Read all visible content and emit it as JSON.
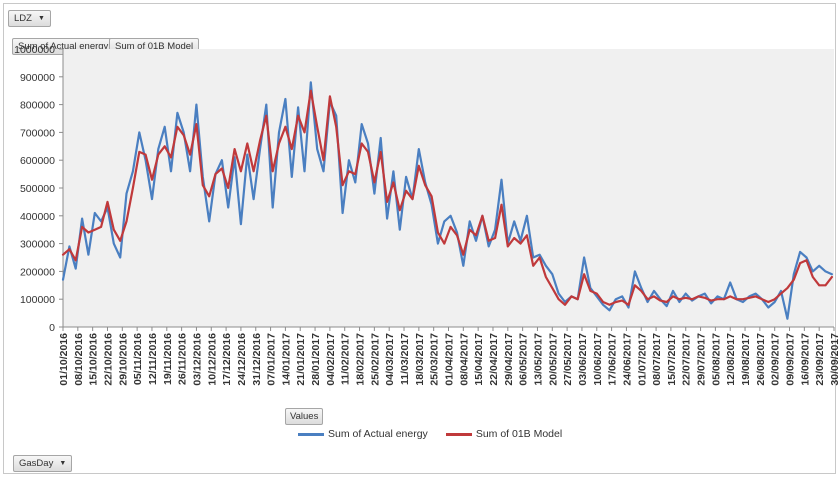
{
  "filter": {
    "ldz_label": "LDZ"
  },
  "value_buttons": [
    "Sum of Actual energy",
    "Sum of 01B Model"
  ],
  "values_button": "Values",
  "axis_button": "GasDay",
  "colors": {
    "actual": "#4a7fc1",
    "model": "#c0393b",
    "plot_bg": "#f0f0f0"
  },
  "chart_data": {
    "type": "line",
    "title": "",
    "xlabel": "",
    "ylabel": "",
    "ylim": [
      0,
      1000000
    ],
    "yticks": [
      "0",
      "100000",
      "200000",
      "300000",
      "400000",
      "500000",
      "600000",
      "700000",
      "800000",
      "900000",
      "1000000"
    ],
    "grid": false,
    "legend_position": "bottom",
    "x_start": "01/10/2016",
    "x_end": "30/09/2017",
    "xtick_labels": [
      "01/10/2016",
      "08/10/2016",
      "15/10/2016",
      "22/10/2016",
      "29/10/2016",
      "05/11/2016",
      "12/11/2016",
      "19/11/2016",
      "26/11/2016",
      "03/12/2016",
      "10/12/2016",
      "17/12/2016",
      "24/12/2016",
      "31/12/2016",
      "07/01/2017",
      "14/01/2017",
      "21/01/2017",
      "28/01/2017",
      "04/02/2017",
      "11/02/2017",
      "18/02/2017",
      "25/02/2017",
      "04/03/2017",
      "11/03/2017",
      "18/03/2017",
      "25/03/2017",
      "01/04/2017",
      "08/04/2017",
      "15/04/2017",
      "22/04/2017",
      "29/04/2017",
      "06/05/2017",
      "13/05/2017",
      "20/05/2017",
      "27/05/2017",
      "03/06/2017",
      "10/06/2017",
      "17/06/2017",
      "24/06/2017",
      "01/07/2017",
      "08/07/2017",
      "15/07/2017",
      "22/07/2017",
      "29/07/2017",
      "05/08/2017",
      "12/08/2017",
      "19/08/2017",
      "26/08/2017",
      "02/09/2017",
      "09/09/2017",
      "16/09/2017",
      "23/09/2017",
      "30/09/2017"
    ],
    "x": [
      "01/10/2016",
      "04/10/2016",
      "07/10/2016",
      "10/10/2016",
      "13/10/2016",
      "16/10/2016",
      "19/10/2016",
      "22/10/2016",
      "25/10/2016",
      "28/10/2016",
      "31/10/2016",
      "03/11/2016",
      "06/11/2016",
      "09/11/2016",
      "12/11/2016",
      "15/11/2016",
      "18/11/2016",
      "21/11/2016",
      "24/11/2016",
      "27/11/2016",
      "30/11/2016",
      "03/12/2016",
      "06/12/2016",
      "09/12/2016",
      "12/12/2016",
      "15/12/2016",
      "18/12/2016",
      "21/12/2016",
      "24/12/2016",
      "27/12/2016",
      "30/12/2016",
      "02/01/2017",
      "05/01/2017",
      "08/01/2017",
      "11/01/2017",
      "14/01/2017",
      "17/01/2017",
      "20/01/2017",
      "23/01/2017",
      "26/01/2017",
      "29/01/2017",
      "01/02/2017",
      "04/02/2017",
      "07/02/2017",
      "10/02/2017",
      "13/02/2017",
      "16/02/2017",
      "19/02/2017",
      "22/02/2017",
      "25/02/2017",
      "28/02/2017",
      "03/03/2017",
      "06/03/2017",
      "09/03/2017",
      "12/03/2017",
      "15/03/2017",
      "18/03/2017",
      "21/03/2017",
      "24/03/2017",
      "27/03/2017",
      "30/03/2017",
      "02/04/2017",
      "05/04/2017",
      "08/04/2017",
      "11/04/2017",
      "14/04/2017",
      "17/04/2017",
      "20/04/2017",
      "23/04/2017",
      "26/04/2017",
      "29/04/2017",
      "02/05/2017",
      "05/05/2017",
      "08/05/2017",
      "11/05/2017",
      "14/05/2017",
      "17/05/2017",
      "20/05/2017",
      "23/05/2017",
      "26/05/2017",
      "29/05/2017",
      "01/06/2017",
      "04/06/2017",
      "07/06/2017",
      "10/06/2017",
      "13/06/2017",
      "16/06/2017",
      "19/06/2017",
      "22/06/2017",
      "25/06/2017",
      "28/06/2017",
      "01/07/2017",
      "04/07/2017",
      "07/07/2017",
      "10/07/2017",
      "13/07/2017",
      "16/07/2017",
      "19/07/2017",
      "22/07/2017",
      "25/07/2017",
      "28/07/2017",
      "31/07/2017",
      "03/08/2017",
      "06/08/2017",
      "09/08/2017",
      "12/08/2017",
      "15/08/2017",
      "18/08/2017",
      "21/08/2017",
      "24/08/2017",
      "27/08/2017",
      "30/08/2017",
      "02/09/2017",
      "05/09/2017",
      "08/09/2017",
      "11/09/2017",
      "14/09/2017",
      "17/09/2017",
      "20/09/2017",
      "23/09/2017",
      "26/09/2017",
      "29/09/2017"
    ],
    "series": [
      {
        "name": "Sum of Actual energy",
        "color": "#4a7fc1",
        "values": [
          170000,
          290000,
          210000,
          390000,
          260000,
          410000,
          380000,
          430000,
          300000,
          250000,
          480000,
          560000,
          700000,
          600000,
          460000,
          640000,
          720000,
          560000,
          770000,
          700000,
          560000,
          800000,
          540000,
          380000,
          550000,
          600000,
          430000,
          610000,
          370000,
          620000,
          460000,
          640000,
          800000,
          430000,
          700000,
          820000,
          540000,
          790000,
          560000,
          880000,
          640000,
          560000,
          810000,
          760000,
          410000,
          600000,
          520000,
          730000,
          660000,
          480000,
          680000,
          390000,
          560000,
          350000,
          540000,
          460000,
          640000,
          520000,
          440000,
          300000,
          380000,
          400000,
          340000,
          220000,
          380000,
          310000,
          400000,
          290000,
          350000,
          530000,
          300000,
          380000,
          310000,
          400000,
          250000,
          260000,
          220000,
          190000,
          120000,
          90000,
          110000,
          100000,
          250000,
          140000,
          110000,
          80000,
          60000,
          100000,
          110000,
          70000,
          200000,
          140000,
          90000,
          130000,
          100000,
          75000,
          130000,
          90000,
          120000,
          95000,
          110000,
          120000,
          85000,
          110000,
          100000,
          160000,
          100000,
          90000,
          110000,
          120000,
          100000,
          70000,
          90000,
          130000,
          30000,
          190000,
          270000,
          250000,
          200000,
          220000,
          200000,
          190000
        ]
      },
      {
        "name": "Sum of 01B Model",
        "color": "#c0393b",
        "values": [
          260000,
          280000,
          240000,
          360000,
          340000,
          350000,
          360000,
          450000,
          350000,
          310000,
          380000,
          500000,
          630000,
          620000,
          530000,
          620000,
          650000,
          610000,
          720000,
          690000,
          620000,
          730000,
          510000,
          470000,
          550000,
          570000,
          500000,
          640000,
          560000,
          660000,
          560000,
          670000,
          760000,
          560000,
          660000,
          720000,
          640000,
          760000,
          700000,
          850000,
          720000,
          600000,
          830000,
          720000,
          510000,
          560000,
          550000,
          660000,
          630000,
          520000,
          630000,
          450000,
          520000,
          420000,
          490000,
          460000,
          580000,
          510000,
          470000,
          340000,
          300000,
          360000,
          330000,
          260000,
          350000,
          330000,
          400000,
          310000,
          320000,
          440000,
          290000,
          320000,
          300000,
          330000,
          220000,
          250000,
          180000,
          140000,
          100000,
          80000,
          110000,
          100000,
          190000,
          130000,
          120000,
          90000,
          80000,
          90000,
          95000,
          80000,
          150000,
          130000,
          100000,
          110000,
          95000,
          90000,
          110000,
          100000,
          105000,
          100000,
          110000,
          105000,
          95000,
          100000,
          100000,
          110000,
          100000,
          100000,
          105000,
          110000,
          100000,
          90000,
          100000,
          120000,
          140000,
          170000,
          230000,
          240000,
          180000,
          150000,
          150000,
          180000
        ]
      }
    ]
  }
}
